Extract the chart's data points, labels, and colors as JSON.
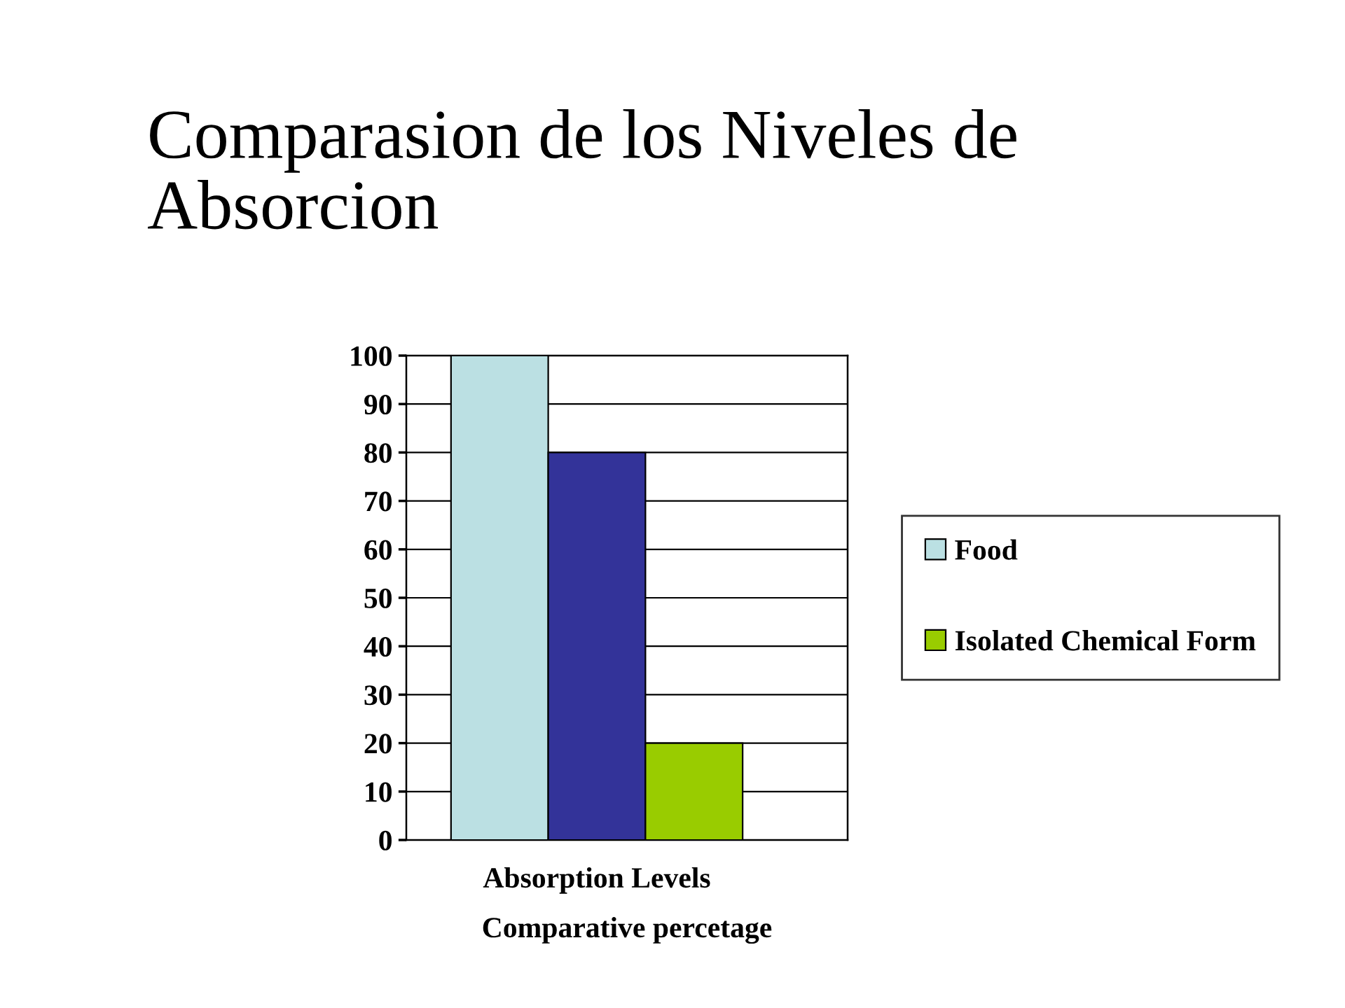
{
  "chart_data": {
    "type": "bar",
    "title": "Comparasion de los Niveles de Absorcion",
    "categories": [
      null,
      "Absorption Levels",
      null
    ],
    "xlabel": "Comparative percetage",
    "stacked": true,
    "series": [
      {
        "name": "Food",
        "color": "#bbe0e3",
        "values": [
          100,
          null,
          null
        ]
      },
      {
        "color": "#333399",
        "values": [
          null,
          80,
          null
        ]
      },
      {
        "name": "Isolated Chemical Form",
        "color": "#99cc00",
        "values": [
          null,
          null,
          20
        ]
      }
    ],
    "ylim": [
      0,
      100
    ],
    "yticks": [
      0,
      10,
      20,
      30,
      40,
      50,
      60,
      70,
      80,
      90,
      100
    ],
    "grid": "y",
    "legend": "right"
  }
}
